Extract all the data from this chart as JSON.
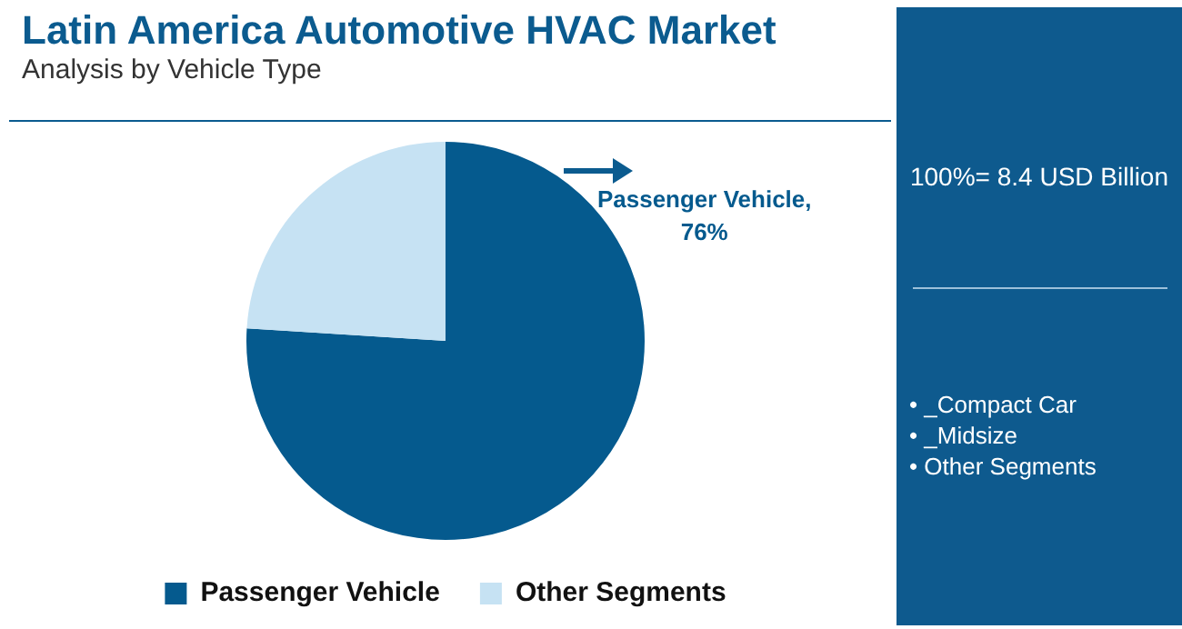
{
  "chart_data": {
    "type": "pie",
    "title": "Latin America Automotive HVAC Market",
    "subtitle": "Analysis by Vehicle Type",
    "categories": [
      "Passenger Vehicle",
      "Other Segments"
    ],
    "values": [
      76,
      24
    ],
    "colors": [
      "#055a8e",
      "#c6e2f3"
    ],
    "value_labels": [
      "Passenger Vehicle, 76%",
      null
    ],
    "legend": "bottom",
    "annotations": [
      "100%= 8.4 USD Billion",
      "• _Compact Car",
      "• _Midsize",
      "• Other Segments"
    ]
  }
}
